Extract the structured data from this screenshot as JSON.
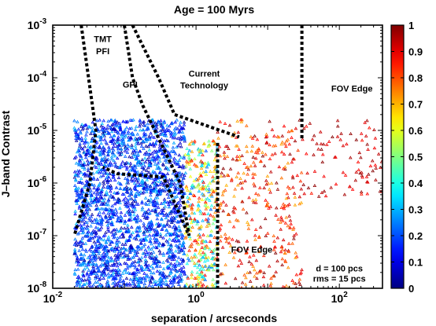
{
  "chart_data": {
    "type": "scatter",
    "title": "Age = 100 Myrs",
    "xlabel": "separation / arcseconds",
    "ylabel": "J–band Contrast",
    "xscale": "log",
    "yscale": "log",
    "xlim": [
      0.01,
      400
    ],
    "ylim": [
      1e-08,
      0.001
    ],
    "x_ticks": [
      {
        "value": 0.01,
        "base": "10",
        "exp": "-2"
      },
      {
        "value": 1,
        "base": "10",
        "exp": "0"
      },
      {
        "value": 100,
        "base": "10",
        "exp": "2"
      }
    ],
    "y_ticks": [
      {
        "value": 0.001,
        "base": "10",
        "exp": "-3"
      },
      {
        "value": 0.0001,
        "base": "10",
        "exp": "-4"
      },
      {
        "value": 1e-05,
        "base": "10",
        "exp": "-5"
      },
      {
        "value": 1e-06,
        "base": "10",
        "exp": "-6"
      },
      {
        "value": 1e-07,
        "base": "10",
        "exp": "-7"
      },
      {
        "value": 1e-08,
        "base": "10",
        "exp": "-8"
      }
    ],
    "colorbar": {
      "min": 0,
      "max": 1,
      "colormap": "jet",
      "tick_labels": [
        "0",
        "0.1",
        "0.2",
        "0.3",
        "0.4",
        "0.5",
        "0.6",
        "0.7",
        "0.8",
        "0.9",
        "1"
      ]
    },
    "grid": false,
    "marker": "triangle",
    "curves": [
      {
        "label": "TMT PFI",
        "points": [
          [
            0.025,
            0.001
          ],
          [
            0.04,
            1e-05
          ],
          [
            0.033,
            1e-06
          ],
          [
            0.02,
            1e-07
          ]
        ]
      },
      {
        "label": "GPI",
        "points": [
          [
            0.1,
            0.001
          ],
          [
            0.13,
            0.0001
          ],
          [
            0.18,
            3e-05
          ],
          [
            0.6,
            1e-06
          ],
          [
            0.8,
            1e-07
          ],
          [
            0.35,
            1.3e-06
          ],
          [
            0.08,
            1.5e-06
          ],
          [
            0.05,
            2e-06
          ]
        ]
      },
      {
        "label": "Current Technology",
        "points": [
          [
            0.13,
            0.001
          ],
          [
            0.3,
            0.0001
          ],
          [
            0.5,
            2e-05
          ],
          [
            4,
            7.5e-06
          ]
        ]
      },
      {
        "label": "FOV Edge",
        "points": [
          [
            30,
            0.001
          ],
          [
            30,
            7e-06
          ]
        ]
      },
      {
        "label": "FOV Edge",
        "points": [
          [
            2.0,
            5.8e-06
          ],
          [
            2.0,
            1e-08
          ]
        ]
      }
    ],
    "scatter_bands": [
      {
        "x_range": [
          0.02,
          0.7
        ],
        "log_y_range": [
          -8.0,
          -4.8
        ],
        "color_range": [
          0.02,
          0.32
        ],
        "count": 2400
      },
      {
        "x_range": [
          0.7,
          2.0
        ],
        "log_y_range": [
          -8.0,
          -5.2
        ],
        "color_range": [
          0.2,
          0.9
        ],
        "count": 380
      },
      {
        "x_range": [
          2.0,
          30
        ],
        "log_y_range": [
          -8.0,
          -4.8
        ],
        "color_range": [
          0.7,
          1.0
        ],
        "count": 360
      },
      {
        "x_range": [
          30,
          400
        ],
        "log_y_range": [
          -6.3,
          -4.8
        ],
        "color_range": [
          0.85,
          1.0
        ],
        "count": 90
      }
    ],
    "annotations": [
      {
        "text": "TMT",
        "x": 0.05,
        "y": 0.00048
      },
      {
        "text": "PFI",
        "x": 0.05,
        "y": 0.00028
      },
      {
        "text": "GPI",
        "x": 0.12,
        "y": 6.5e-05
      },
      {
        "text": "Current",
        "x": 1.3,
        "y": 0.000105
      },
      {
        "text": "Technology",
        "x": 1.3,
        "y": 6.3e-05
      },
      {
        "text": "FOV Edge",
        "x": 150,
        "y": 5.5e-05
      },
      {
        "text": "FOV Edge",
        "x": 6,
        "y": 4.8e-08
      },
      {
        "text": "d = 100 pcs",
        "x": 100,
        "y": 2.1e-08
      },
      {
        "text": "rms = 15 pcs",
        "x": 100,
        "y": 1.35e-08
      }
    ]
  }
}
